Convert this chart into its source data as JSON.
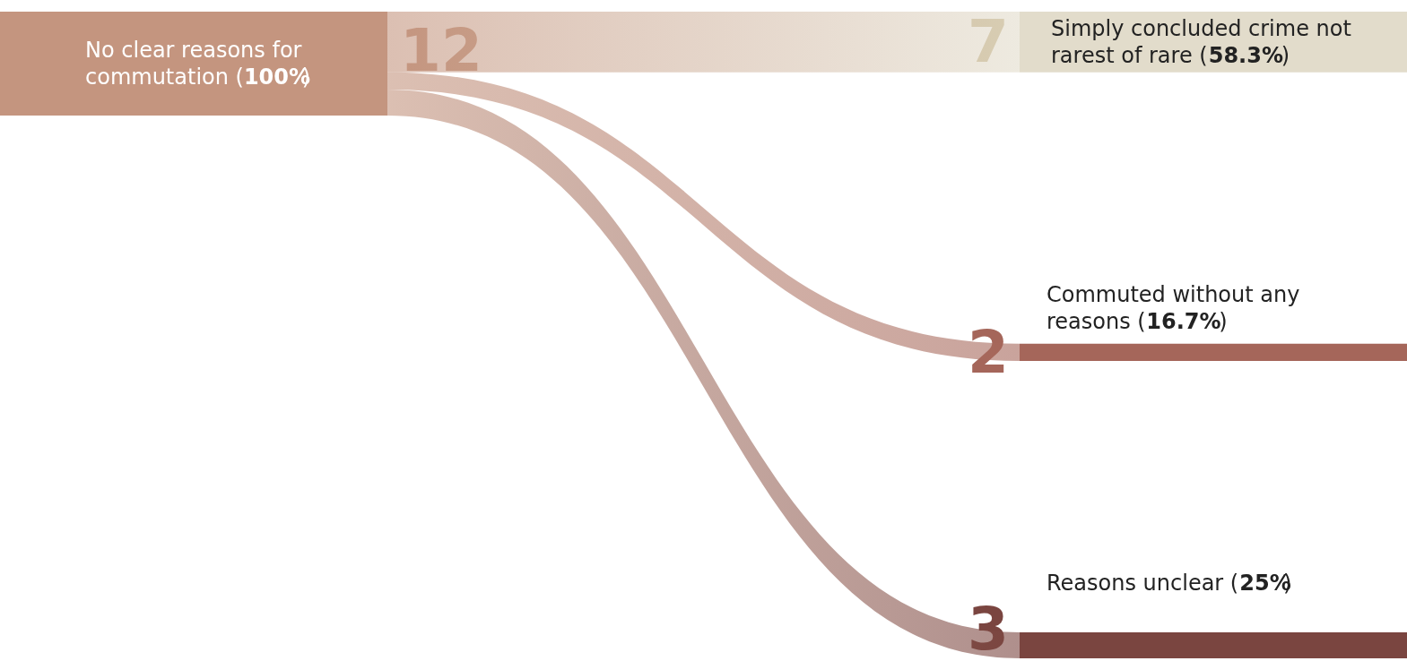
{
  "chart_data": {
    "type": "other",
    "categories": [
      "No clear reasons for commutation (100%)",
      "Simply concluded crime not rarest of rare (58.3%)",
      "Commuted without any reasons (16.7%)",
      "Reasons unclear (25%)"
    ],
    "values": [
      12,
      7,
      2,
      3
    ],
    "data_labels": true,
    "colors": [
      "#c4957f",
      "#e2dccb",
      "#a5665a",
      "#7a4540"
    ]
  }
}
